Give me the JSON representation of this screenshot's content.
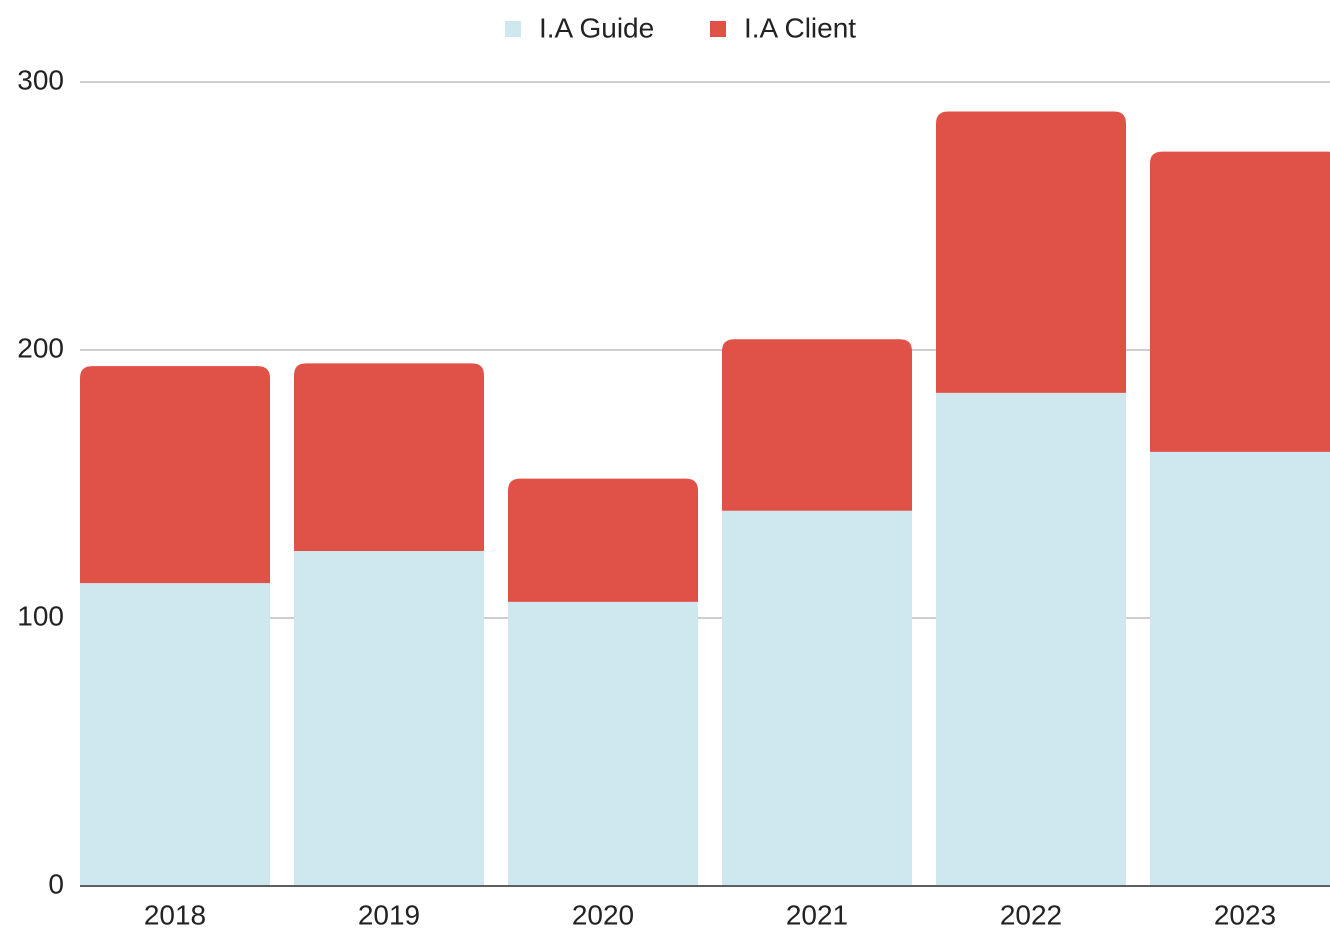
{
  "chart_data": {
    "type": "stacked_bar",
    "categories": [
      "2018",
      "2019",
      "2020",
      "2021",
      "2022",
      "2023"
    ],
    "series": [
      {
        "name": "I.A Guide",
        "color": "#cfe7ef",
        "values": [
          113,
          125,
          106,
          140,
          184,
          162
        ]
      },
      {
        "name": "I.A Client",
        "color": "#e05247",
        "values": [
          81,
          70,
          46,
          64,
          105,
          112
        ]
      }
    ],
    "ylim": [
      0,
      300
    ],
    "yticks": [
      0,
      100,
      200,
      300
    ],
    "grid": true,
    "legend": "top"
  }
}
